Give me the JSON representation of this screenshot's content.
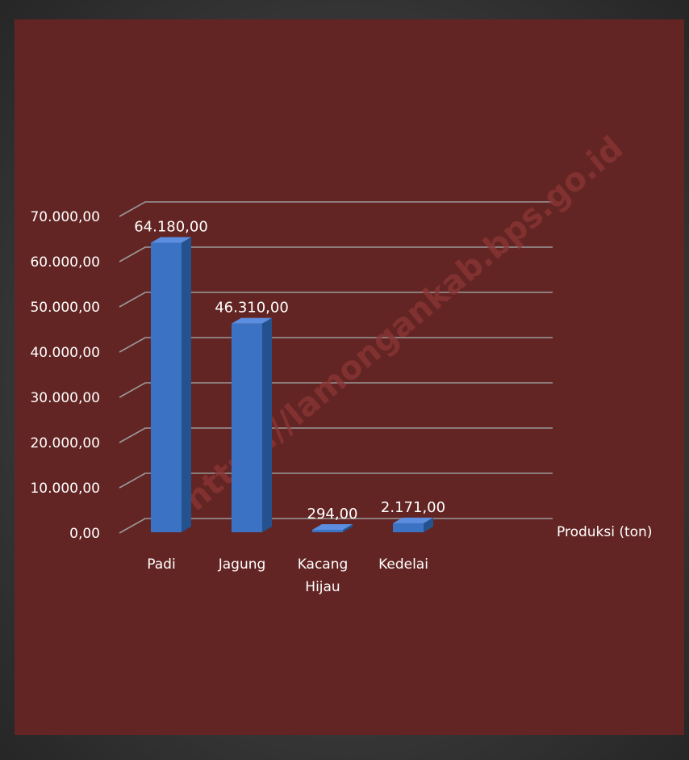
{
  "colors": {
    "plot_background": "#632523",
    "gridline": "#9a9a9a",
    "bar_front": "#3b72c4",
    "bar_side": "#24528f",
    "bar_top": "#5b8ee0",
    "text": "#ffffff"
  },
  "watermark": "https://lamongankab.bps.go.id",
  "chart_data": {
    "type": "bar",
    "style": "3d-column",
    "categories": [
      "Padi",
      "Jagung",
      "Kacang Hijau",
      "Kedelai"
    ],
    "category_label_lines": [
      [
        "Padi"
      ],
      [
        "Jagung"
      ],
      [
        "Kacang",
        "Hijau"
      ],
      [
        "Kedelai"
      ]
    ],
    "series": [
      {
        "name": "Produksi (ton)",
        "values": [
          64180,
          46310,
          294,
          2171
        ],
        "data_labels": [
          "64.180,00",
          "46.310,00",
          "294,00",
          "2.171,00"
        ]
      }
    ],
    "ylim": [
      0,
      70000
    ],
    "y_ticks": [
      0,
      10000,
      20000,
      30000,
      40000,
      50000,
      60000,
      70000
    ],
    "y_tick_labels": [
      "0,00",
      "10.000,00",
      "20.000,00",
      "30.000,00",
      "40.000,00",
      "50.000,00",
      "60.000,00",
      "70.000,00"
    ],
    "grid": true,
    "legend_position": "right",
    "title": "",
    "xlabel": "",
    "ylabel": ""
  }
}
